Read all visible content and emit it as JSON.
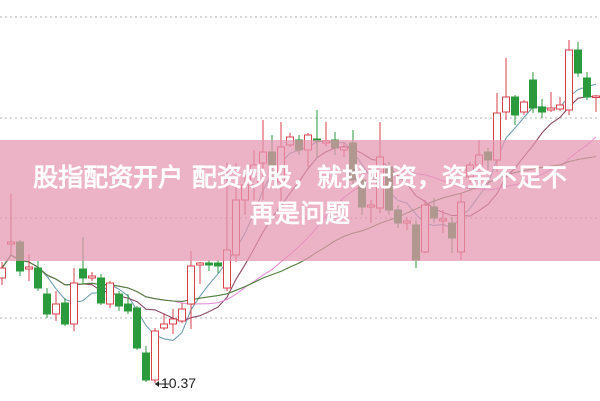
{
  "overlay": {
    "line1": "股指配资开户 配资炒股，就找配资，资金不足不",
    "line2": "再是问题"
  },
  "chart_data": {
    "type": "candlestick",
    "title": "",
    "xlabel": "",
    "ylabel": "",
    "ylim": [
      10.19,
      14.2
    ],
    "grid": true,
    "gridlines": [
      14.03,
      13.02,
      12.02,
      11.02
    ],
    "low_marker": {
      "label": "10.37",
      "value": 10.37,
      "index": 17
    },
    "colors": {
      "up": "#d8404e",
      "down": "#2a9a3c",
      "grid": "#b0b0b0",
      "ma": [
        "#6f9fb0",
        "#8a4a66",
        "#e58fd6",
        "#4f7d3c"
      ]
    },
    "moving_averages": [
      5,
      10,
      20,
      30
    ],
    "candles": [
      [
        11.42,
        11.58,
        11.35,
        11.52
      ],
      [
        11.76,
        12.26,
        11.66,
        11.78
      ],
      [
        11.78,
        11.8,
        11.44,
        11.49
      ],
      [
        11.51,
        11.66,
        11.39,
        11.53
      ],
      [
        11.52,
        11.59,
        11.29,
        11.32
      ],
      [
        11.26,
        11.32,
        11.02,
        11.06
      ],
      [
        11.06,
        11.29,
        10.99,
        11.16
      ],
      [
        11.17,
        11.22,
        10.94,
        10.96
      ],
      [
        10.96,
        11.52,
        10.89,
        11.37
      ],
      [
        11.51,
        11.83,
        11.36,
        11.42
      ],
      [
        11.42,
        11.48,
        11.39,
        11.44
      ],
      [
        11.42,
        11.46,
        11.15,
        11.17
      ],
      [
        11.16,
        11.39,
        11.12,
        11.37
      ],
      [
        11.26,
        11.29,
        11.09,
        11.14
      ],
      [
        11.16,
        11.26,
        11.06,
        11.09
      ],
      [
        11.12,
        11.14,
        10.7,
        10.72
      ],
      [
        10.67,
        10.74,
        10.38,
        10.4
      ],
      [
        10.4,
        10.92,
        10.37,
        10.89
      ],
      [
        10.92,
        11.06,
        10.9,
        10.96
      ],
      [
        10.96,
        11.11,
        10.86,
        11.01
      ],
      [
        10.99,
        11.17,
        10.97,
        11.11
      ],
      [
        11.16,
        11.69,
        10.91,
        11.54
      ],
      [
        11.55,
        11.58,
        11.36,
        11.57
      ],
      [
        11.57,
        11.6,
        11.49,
        11.55
      ],
      [
        11.57,
        11.6,
        11.47,
        11.54
      ],
      [
        11.32,
        12.57,
        11.29,
        11.7
      ],
      [
        11.65,
        12.57,
        11.58,
        12.2
      ],
      [
        12.2,
        12.45,
        12.05,
        12.35
      ],
      [
        12.35,
        12.7,
        12.2,
        12.55
      ],
      [
        12.57,
        13.0,
        12.2,
        12.68
      ],
      [
        12.68,
        12.85,
        12.43,
        12.55
      ],
      [
        12.38,
        12.98,
        12.17,
        12.73
      ],
      [
        12.75,
        12.87,
        12.73,
        12.83
      ],
      [
        12.8,
        12.85,
        12.65,
        12.7
      ],
      [
        12.7,
        12.87,
        12.53,
        12.85
      ],
      [
        12.81,
        13.1,
        12.62,
        12.79
      ],
      [
        12.77,
        12.98,
        12.73,
        12.79
      ],
      [
        12.8,
        12.88,
        12.65,
        12.72
      ],
      [
        12.7,
        12.77,
        12.63,
        12.73
      ],
      [
        12.77,
        12.9,
        12.33,
        12.4
      ],
      [
        12.4,
        12.42,
        12.05,
        12.13
      ],
      [
        12.13,
        12.2,
        11.97,
        12.15
      ],
      [
        12.12,
        12.98,
        12.07,
        12.63
      ],
      [
        12.53,
        12.58,
        12.05,
        12.1
      ],
      [
        12.1,
        12.15,
        11.92,
        11.97
      ],
      [
        11.97,
        12.03,
        11.9,
        11.99
      ],
      [
        11.95,
        12.0,
        11.52,
        11.6
      ],
      [
        11.68,
        12.2,
        11.67,
        12.15
      ],
      [
        12.13,
        12.22,
        11.97,
        12.02
      ],
      [
        11.99,
        12.1,
        11.87,
        12.01
      ],
      [
        11.97,
        12.03,
        11.67,
        11.82
      ],
      [
        11.68,
        12.27,
        11.6,
        12.18
      ],
      [
        12.43,
        12.58,
        12.37,
        12.55
      ],
      [
        12.55,
        12.8,
        12.5,
        12.65
      ],
      [
        12.68,
        12.72,
        12.5,
        12.6
      ],
      [
        12.6,
        13.27,
        12.48,
        13.07
      ],
      [
        13.08,
        13.62,
        13.0,
        13.23
      ],
      [
        13.23,
        13.25,
        12.95,
        13.05
      ],
      [
        13.08,
        13.2,
        13.05,
        13.18
      ],
      [
        13.4,
        13.48,
        13.07,
        13.12
      ],
      [
        13.13,
        13.21,
        13.02,
        13.08
      ],
      [
        13.1,
        13.28,
        13.08,
        13.12
      ],
      [
        13.11,
        13.23,
        13.09,
        13.15
      ],
      [
        13.1,
        13.8,
        13.05,
        13.7
      ],
      [
        13.7,
        13.78,
        13.43,
        13.47
      ],
      [
        13.42,
        13.48,
        13.2,
        13.23
      ],
      [
        13.23,
        13.25,
        13.08,
        13.24
      ]
    ]
  }
}
